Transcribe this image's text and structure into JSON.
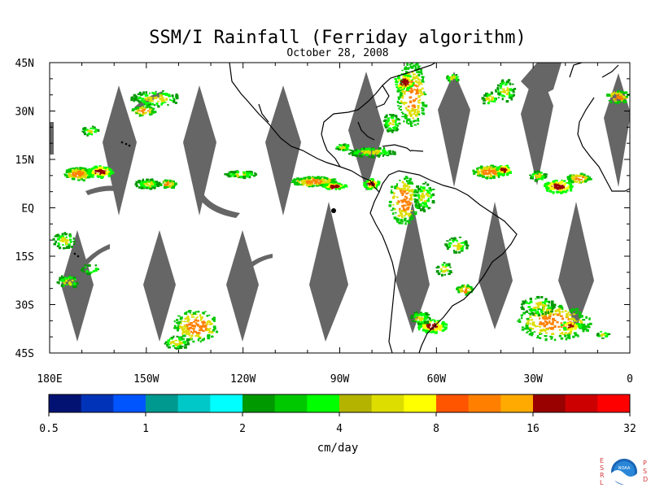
{
  "title": "SSM/I Rainfall (Ferriday algorithm)",
  "subtitle": "October 28, 2008",
  "lat_labels": [
    "45N",
    "30N",
    "15N",
    "EQ",
    "15S",
    "30S",
    "45S"
  ],
  "lat_values": [
    45,
    30,
    15,
    0,
    -15,
    -30,
    -45
  ],
  "lon_labels": [
    "180E",
    "150W",
    "120W",
    "90W",
    "60W",
    "30W",
    "0"
  ],
  "lon_values": [
    -180,
    -150,
    -120,
    -90,
    -60,
    -30,
    0
  ],
  "colorbar": {
    "colors": [
      "#021273",
      "#0033b8",
      "#0055ff",
      "#00998f",
      "#00c8c8",
      "#00ffff",
      "#009900",
      "#00c800",
      "#00ff00",
      "#b4b400",
      "#dddd00",
      "#ffff00",
      "#ff5500",
      "#ff8000",
      "#ffaa00",
      "#990000",
      "#cc0000",
      "#ff0000"
    ],
    "tick_labels": [
      "0.5",
      "1",
      "2",
      "4",
      "8",
      "16",
      "32"
    ],
    "units": "cm/day"
  },
  "swath_gap_color": "#666666",
  "logo": {
    "left_letters": [
      "E",
      "S",
      "R",
      "L"
    ],
    "right_letters": [
      "P",
      "S",
      "D"
    ],
    "text": "NOAA"
  }
}
